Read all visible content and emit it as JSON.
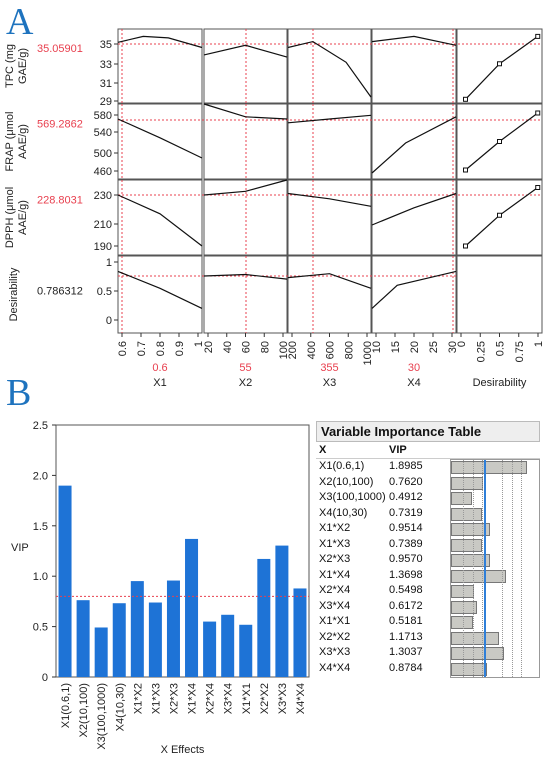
{
  "panelA": {
    "letter": "A",
    "rows": [
      {
        "label": "TPC (mg GAE/g)",
        "value": "35.05901"
      },
      {
        "label": "FRAP (μmol AAE/g)",
        "value": "569.2862"
      },
      {
        "label": "DPPH (μmol AAE/g)",
        "value": "228.8031"
      },
      {
        "label": "Desirability",
        "value": "0.786312"
      }
    ],
    "columns": [
      {
        "label": "X1",
        "value": "0.6"
      },
      {
        "label": "X2",
        "value": "55"
      },
      {
        "label": "X3",
        "value": "355"
      },
      {
        "label": "X4",
        "value": "30"
      },
      {
        "label": "Desirability",
        "value": ""
      }
    ],
    "y_ticks": [
      [
        "35",
        "33",
        "31",
        "29"
      ],
      [
        "580",
        "540",
        "500",
        "460"
      ],
      [
        "230",
        "210",
        "190"
      ],
      [
        "1",
        "0.5",
        "0"
      ]
    ],
    "x_ticks": [
      [
        "0.6",
        "0.7",
        "0.8",
        "0.9",
        "1"
      ],
      [
        "20",
        "40",
        "60",
        "80",
        "100"
      ],
      [
        "200",
        "400",
        "600",
        "800",
        "1000"
      ],
      [
        "10",
        "15",
        "20",
        "25",
        "30"
      ],
      [
        "0",
        "0.25",
        "0.5",
        "0.75",
        "1"
      ]
    ]
  },
  "panelB": {
    "letter": "B",
    "chart_data": {
      "type": "bar",
      "categories": [
        "X1(0.6,1)",
        "X2(10,100)",
        "X3(100,1000)",
        "X4(10,30)",
        "X1*X2",
        "X1*X3",
        "X2*X3",
        "X1*X4",
        "X2*X4",
        "X3*X4",
        "X1*X1",
        "X2*X2",
        "X3*X3",
        "X4*X4"
      ],
      "values": [
        1.8985,
        0.762,
        0.4912,
        0.7319,
        0.9514,
        0.7389,
        0.957,
        1.3698,
        0.5498,
        0.6172,
        0.5181,
        1.1713,
        1.3037,
        0.8784
      ],
      "xlabel": "X Effects",
      "ylabel": "VIP",
      "ylim": [
        0,
        2.5
      ],
      "yticks": [
        "0",
        "0.5",
        "1.0",
        "1.5",
        "2.0",
        "2.5"
      ],
      "reference_line": 0.8,
      "bar_color": "#1e73d6"
    },
    "table": {
      "title": "Variable Importance Table",
      "col_x": "X",
      "col_vip": "VIP",
      "rows": [
        {
          "x": "X1(0.6,1)",
          "vip": "1.8985"
        },
        {
          "x": "X2(10,100)",
          "vip": "0.7620"
        },
        {
          "x": "X3(100,1000)",
          "vip": "0.4912"
        },
        {
          "x": "X4(10,30)",
          "vip": "0.7319"
        },
        {
          "x": "X1*X2",
          "vip": "0.9514"
        },
        {
          "x": "X1*X3",
          "vip": "0.7389"
        },
        {
          "x": "X2*X3",
          "vip": "0.9570"
        },
        {
          "x": "X1*X4",
          "vip": "1.3698"
        },
        {
          "x": "X2*X4",
          "vip": "0.5498"
        },
        {
          "x": "X3*X4",
          "vip": "0.6172"
        },
        {
          "x": "X1*X1",
          "vip": "0.5181"
        },
        {
          "x": "X2*X2",
          "vip": "1.1713"
        },
        {
          "x": "X3*X3",
          "vip": "1.3037"
        },
        {
          "x": "X4*X4",
          "vip": "0.8784"
        }
      ]
    }
  }
}
